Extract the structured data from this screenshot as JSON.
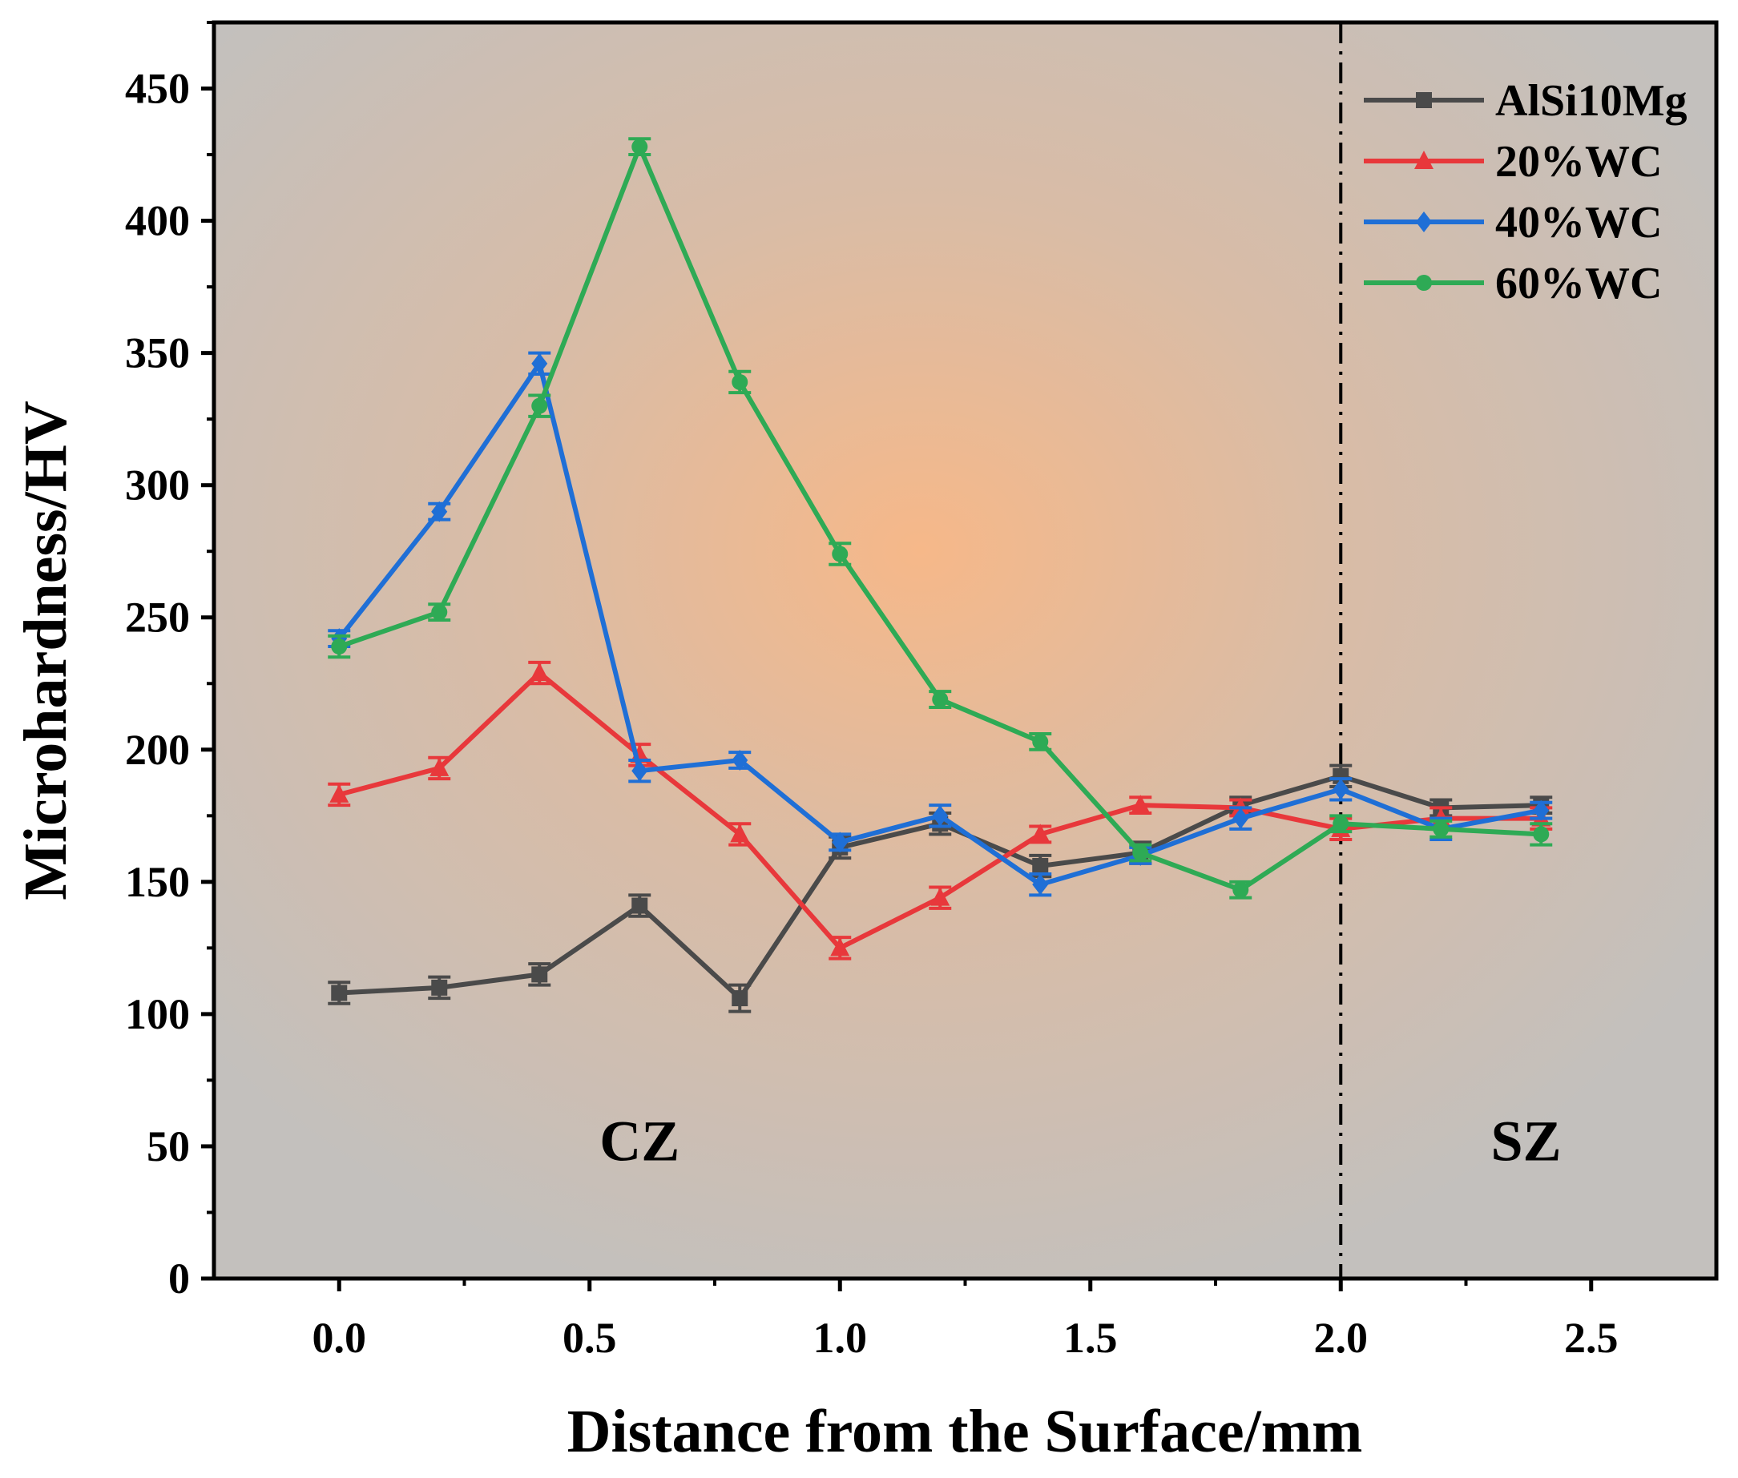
{
  "chart_data": {
    "type": "line",
    "title": "",
    "xlabel": "Distance from the Surface/mm",
    "ylabel": "Microhardness/HV",
    "xlim": [
      -0.25,
      2.75
    ],
    "ylim": [
      0,
      475
    ],
    "x_ticks": [
      "0.0",
      "0.5",
      "1.0",
      "1.5",
      "2.0",
      "2.5"
    ],
    "y_ticks": [
      "0",
      "50",
      "100",
      "150",
      "200",
      "250",
      "300",
      "350",
      "400",
      "450"
    ],
    "x": [
      0.0,
      0.2,
      0.4,
      0.6,
      0.8,
      1.0,
      1.2,
      1.4,
      1.6,
      1.8,
      2.0,
      2.2,
      2.4
    ],
    "series": [
      {
        "name": "AlSi10Mg",
        "color": "#4a4a4a",
        "marker": "square",
        "values": [
          108,
          110,
          115,
          141,
          106,
          163,
          172,
          156,
          161,
          179,
          190,
          178,
          179
        ],
        "errors": [
          4,
          4,
          4,
          4,
          5,
          4,
          4,
          4,
          4,
          3,
          4,
          3,
          3
        ]
      },
      {
        "name": "20%WC",
        "color": "#e8383b",
        "marker": "triangle",
        "values": [
          183,
          193,
          229,
          198,
          168,
          125,
          144,
          168,
          179,
          178,
          170,
          174,
          174
        ],
        "errors": [
          4,
          4,
          4,
          4,
          4,
          4,
          4,
          3,
          3,
          3,
          4,
          4,
          4
        ]
      },
      {
        "name": "40%WC",
        "color": "#1f6fd6",
        "marker": "diamond",
        "values": [
          242,
          290,
          346,
          192,
          196,
          165,
          175,
          149,
          160,
          174,
          185,
          170,
          177
        ],
        "errors": [
          3,
          3,
          4,
          4,
          3,
          3,
          4,
          4,
          3,
          4,
          4,
          4,
          3
        ]
      },
      {
        "name": "60%WC",
        "color": "#2eaa55",
        "marker": "circle",
        "values": [
          239,
          252,
          330,
          428,
          339,
          274,
          219,
          203,
          161,
          147,
          172,
          170,
          168
        ],
        "errors": [
          4,
          3,
          4,
          3,
          4,
          4,
          3,
          3,
          3,
          3,
          3,
          3,
          4
        ]
      }
    ],
    "annotations": [
      {
        "text": "CZ",
        "x": 0.6,
        "y": 52
      },
      {
        "text": "SZ",
        "x": 2.37,
        "y": 52
      }
    ],
    "divider_x": 2.0,
    "legend": "top-right",
    "grid": false
  }
}
